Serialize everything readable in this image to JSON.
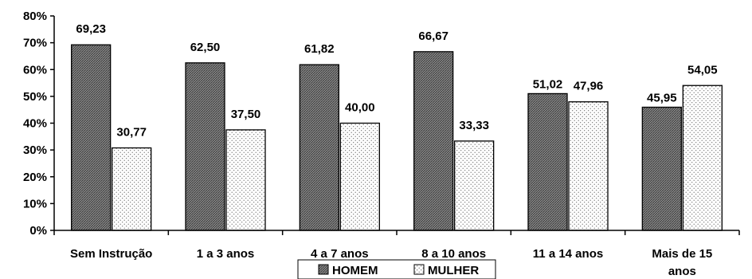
{
  "chart_data": {
    "type": "bar",
    "categories": [
      [
        "Sem Instrução"
      ],
      [
        "1 a 3 anos"
      ],
      [
        "4 a 7 anos"
      ],
      [
        "8 a 10 anos"
      ],
      [
        "11 a 14 anos"
      ],
      [
        "Mais de 15",
        "anos"
      ]
    ],
    "series": [
      {
        "name": "HOMEM",
        "values": [
          69.23,
          62.5,
          61.82,
          66.67,
          51.02,
          45.95
        ],
        "labels": [
          "69,23",
          "62,50",
          "61,82",
          "66,67",
          "51,02",
          "45,95"
        ]
      },
      {
        "name": "MULHER",
        "values": [
          30.77,
          37.5,
          40.0,
          33.33,
          47.96,
          54.05
        ],
        "labels": [
          "30,77",
          "37,50",
          "40,00",
          "33,33",
          "47,96",
          "54,05"
        ]
      }
    ],
    "y_ticks": [
      "0%",
      "10%",
      "20%",
      "30%",
      "40%",
      "50%",
      "60%",
      "70%",
      "80%"
    ],
    "ylim": [
      0,
      80
    ],
    "grid": false,
    "legend": "bottom-center",
    "colors": {
      "homem": "#7a7a7a",
      "mulher": "#ffffff",
      "axis": "#000000"
    }
  }
}
